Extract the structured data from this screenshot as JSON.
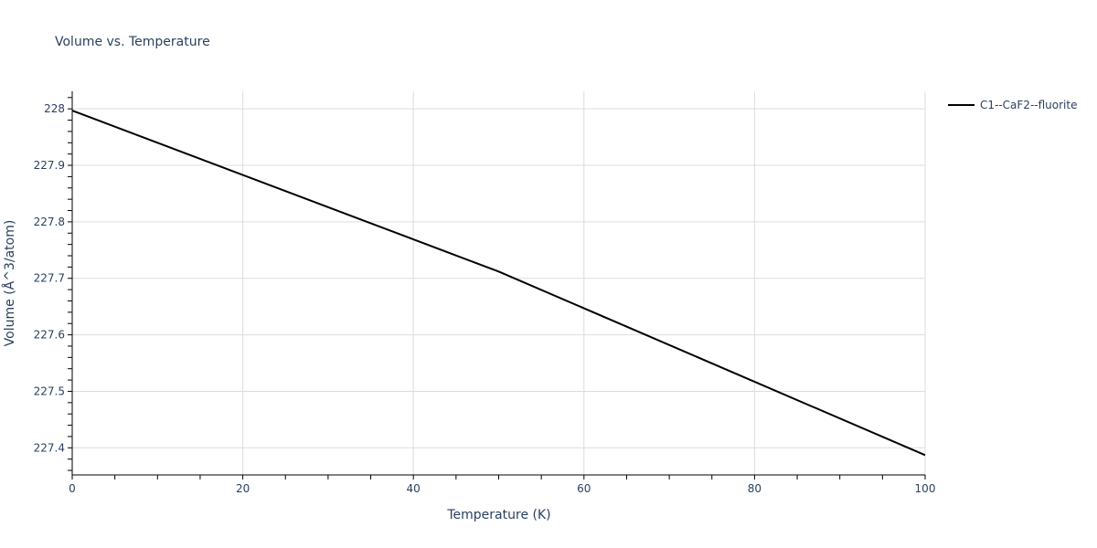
{
  "chart_data": {
    "type": "line",
    "title": "Volume vs. Temperature",
    "xlabel": "Temperature (K)",
    "ylabel": "Volume (Å^3/atom)",
    "xlim": [
      0,
      100
    ],
    "ylim": [
      227.352,
      228.031
    ],
    "x_ticks": [
      0,
      20,
      40,
      60,
      80,
      100
    ],
    "y_ticks": [
      227.4,
      227.5,
      227.6,
      227.7,
      227.8,
      227.9,
      228
    ],
    "y_tick_labels": [
      "227.4",
      "227.5",
      "227.6",
      "227.7",
      "227.8",
      "227.9",
      "228"
    ],
    "x_tick_labels": [
      "0",
      "20",
      "40",
      "60",
      "80",
      "100"
    ],
    "grid": true,
    "legend_position": "top-right-outside",
    "series": [
      {
        "name": "C1--CaF2--fluorite",
        "color": "#000000",
        "x": [
          0,
          50,
          100
        ],
        "y": [
          227.997,
          227.712,
          227.387
        ]
      }
    ]
  },
  "colors": {
    "text": "#2a3f5f",
    "grid": "#dddddd",
    "axis": "#000000"
  }
}
